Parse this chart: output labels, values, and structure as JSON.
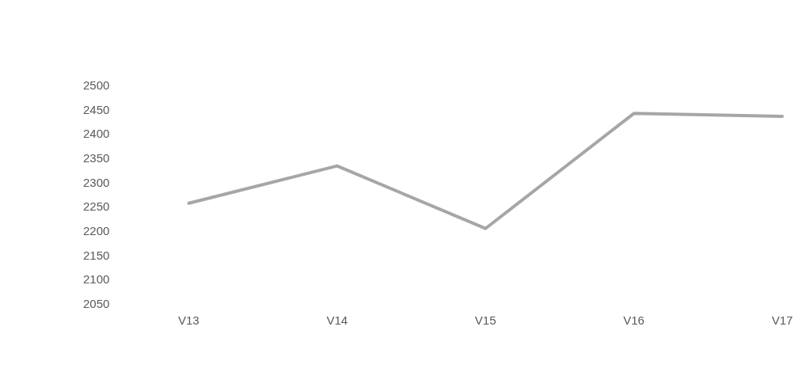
{
  "chart_data": {
    "type": "line",
    "categories": [
      "V13",
      "V14",
      "V15",
      "V16",
      "V17"
    ],
    "series": [
      {
        "color": "#a6a6a6",
        "values": [
          2259,
          2336,
          2207,
          2444,
          2438
        ]
      }
    ],
    "ylim": [
      2050,
      2500
    ],
    "yticks": [
      2050,
      2100,
      2150,
      2200,
      2250,
      2300,
      2350,
      2400,
      2450,
      2500
    ],
    "grid": false,
    "legend": false,
    "marker": "none",
    "line_style": "solid"
  }
}
